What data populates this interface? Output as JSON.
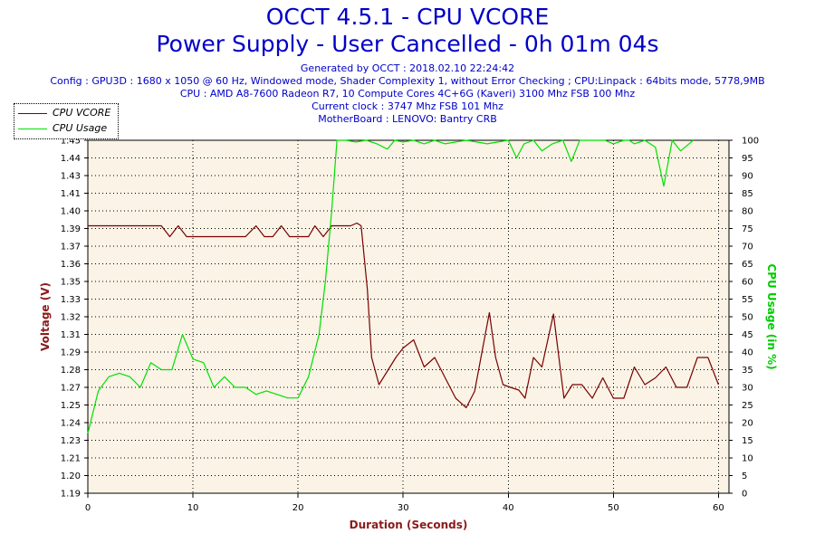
{
  "header": {
    "title": "OCCT 4.5.1 - CPU VCORE",
    "subtitle": "Power Supply - User Cancelled - 0h 01m 04s",
    "generated": "Generated by OCCT : 2018.02.10 22:24:42",
    "config": "Config : GPU3D : 1680 x 1050 @ 60 Hz, Windowed mode, Shader Complexity 1, without Error Checking ; CPU:Linpack : 64bits mode, 5778,9MB",
    "cpu": "CPU : AMD A8-7600 Radeon R7, 10 Compute Cores 4C+6G (Kaveri) 3100 Mhz FSB 100 Mhz",
    "clock": "Current clock : 3747 Mhz FSB 101 Mhz",
    "motherboard": "MotherBoard : LENOVO: Bantry CRB"
  },
  "colors": {
    "plot_bg": "#faf3e6",
    "grid": "#000000",
    "vcore_line": "#7a0000",
    "usage_line": "#00e000",
    "left_axis_title": "#8b1a1a",
    "right_axis_title": "#00cc00",
    "x_axis_title": "#8b1a1a"
  },
  "chart_data": {
    "type": "line",
    "title": "OCCT 4.5.1 - CPU VCORE",
    "xlabel": "Duration (Seconds)",
    "ylabel": "Voltage (V)",
    "y2label": "CPU Usage (in %)",
    "xlim": [
      0,
      61
    ],
    "ylim": [
      1.19,
      1.45
    ],
    "y2lim": [
      0,
      100
    ],
    "xticks": [
      0,
      10,
      20,
      30,
      40,
      50,
      60
    ],
    "yticks": [
      "1.19",
      "1.20",
      "1.21",
      "1.23",
      "1.24",
      "1.25",
      "1.27",
      "1.28",
      "1.29",
      "1.31",
      "1.32",
      "1.33",
      "1.35",
      "1.36",
      "1.37",
      "1.39",
      "1.40",
      "1.41",
      "1.43",
      "1.44",
      "1.45"
    ],
    "y2ticks": [
      0,
      5,
      10,
      15,
      20,
      25,
      30,
      35,
      40,
      45,
      50,
      55,
      60,
      65,
      70,
      75,
      80,
      85,
      90,
      95,
      100
    ],
    "grid": true,
    "legend_position": "top-left",
    "series": [
      {
        "name": "CPU VCORE",
        "axis": "left",
        "points": [
          [
            0,
            1.387
          ],
          [
            1,
            1.387
          ],
          [
            2,
            1.387
          ],
          [
            3,
            1.387
          ],
          [
            4,
            1.387
          ],
          [
            5,
            1.387
          ],
          [
            6,
            1.387
          ],
          [
            7,
            1.387
          ],
          [
            7.8,
            1.379
          ],
          [
            8.6,
            1.387
          ],
          [
            9.4,
            1.379
          ],
          [
            10,
            1.379
          ],
          [
            11,
            1.379
          ],
          [
            12,
            1.379
          ],
          [
            13,
            1.379
          ],
          [
            14,
            1.379
          ],
          [
            15,
            1.379
          ],
          [
            16,
            1.387
          ],
          [
            16.8,
            1.379
          ],
          [
            17.6,
            1.379
          ],
          [
            18.4,
            1.387
          ],
          [
            19.2,
            1.379
          ],
          [
            20,
            1.379
          ],
          [
            21,
            1.379
          ],
          [
            21.6,
            1.387
          ],
          [
            22.4,
            1.379
          ],
          [
            23.2,
            1.387
          ],
          [
            24,
            1.387
          ],
          [
            25,
            1.387
          ],
          [
            25.6,
            1.389
          ],
          [
            26,
            1.387
          ],
          [
            26.6,
            1.34
          ],
          [
            27,
            1.29
          ],
          [
            27.7,
            1.27
          ],
          [
            28.5,
            1.28
          ],
          [
            29.3,
            1.29
          ],
          [
            30,
            1.297
          ],
          [
            31,
            1.303
          ],
          [
            32,
            1.283
          ],
          [
            33,
            1.29
          ],
          [
            34,
            1.275
          ],
          [
            35,
            1.26
          ],
          [
            36,
            1.253
          ],
          [
            36.8,
            1.265
          ],
          [
            37.4,
            1.29
          ],
          [
            38.2,
            1.323
          ],
          [
            38.8,
            1.29
          ],
          [
            39.5,
            1.27
          ],
          [
            40.2,
            1.268
          ],
          [
            41,
            1.266
          ],
          [
            41.6,
            1.26
          ],
          [
            42.4,
            1.29
          ],
          [
            43.2,
            1.283
          ],
          [
            44.3,
            1.322
          ],
          [
            45.3,
            1.26
          ],
          [
            46.1,
            1.27
          ],
          [
            47,
            1.27
          ],
          [
            48,
            1.26
          ],
          [
            49,
            1.275
          ],
          [
            50,
            1.26
          ],
          [
            51,
            1.26
          ],
          [
            52,
            1.283
          ],
          [
            53,
            1.27
          ],
          [
            54,
            1.275
          ],
          [
            55,
            1.283
          ],
          [
            56,
            1.268
          ],
          [
            57,
            1.268
          ],
          [
            58,
            1.29
          ],
          [
            59,
            1.29
          ],
          [
            60,
            1.27
          ]
        ]
      },
      {
        "name": "CPU Usage",
        "axis": "right",
        "points": [
          [
            0,
            17
          ],
          [
            1,
            29
          ],
          [
            2,
            33
          ],
          [
            3,
            34
          ],
          [
            4,
            33
          ],
          [
            5,
            30
          ],
          [
            6,
            37
          ],
          [
            7,
            35
          ],
          [
            8,
            35
          ],
          [
            9,
            45
          ],
          [
            10,
            38
          ],
          [
            11,
            37
          ],
          [
            12,
            30
          ],
          [
            13,
            33
          ],
          [
            14,
            30
          ],
          [
            15,
            30
          ],
          [
            16,
            28
          ],
          [
            17,
            29
          ],
          [
            18,
            28
          ],
          [
            19,
            27
          ],
          [
            20,
            27
          ],
          [
            21,
            33
          ],
          [
            22,
            45
          ],
          [
            22.6,
            60
          ],
          [
            23.2,
            80
          ],
          [
            23.7,
            100
          ],
          [
            24.5,
            100
          ],
          [
            25.5,
            99.5
          ],
          [
            26.5,
            100
          ],
          [
            27.5,
            99
          ],
          [
            28.5,
            97.5
          ],
          [
            29.2,
            100
          ],
          [
            30,
            99.5
          ],
          [
            31,
            100
          ],
          [
            32,
            99
          ],
          [
            33,
            100
          ],
          [
            34,
            99
          ],
          [
            35,
            99.5
          ],
          [
            36,
            100
          ],
          [
            37,
            99.5
          ],
          [
            38,
            99
          ],
          [
            39,
            99.5
          ],
          [
            40,
            100
          ],
          [
            40.8,
            95
          ],
          [
            41.5,
            99
          ],
          [
            42.4,
            100
          ],
          [
            43.2,
            97
          ],
          [
            44.2,
            99
          ],
          [
            45.2,
            100
          ],
          [
            46,
            94
          ],
          [
            46.8,
            100
          ],
          [
            47.6,
            100
          ],
          [
            48.4,
            100
          ],
          [
            49.2,
            100
          ],
          [
            50,
            99
          ],
          [
            51,
            100
          ],
          [
            51.5,
            100
          ],
          [
            52,
            99
          ],
          [
            53,
            100
          ],
          [
            54,
            98
          ],
          [
            54.8,
            87
          ],
          [
            55.6,
            100
          ],
          [
            56.4,
            97
          ],
          [
            57.2,
            99
          ],
          [
            57.6,
            100
          ]
        ]
      }
    ]
  }
}
